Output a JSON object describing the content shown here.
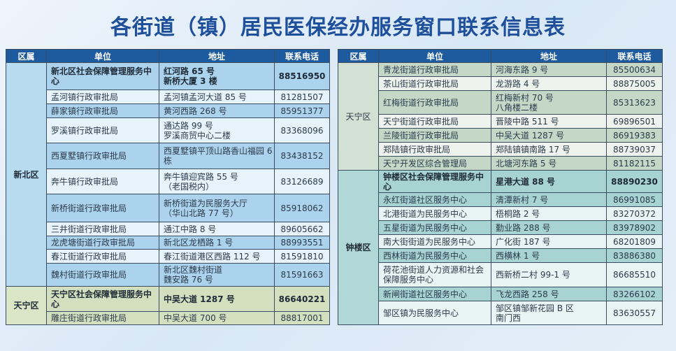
{
  "title": "各街道（镇）居民医保经办服务窗口联系信息表",
  "headers": [
    "区属",
    "单位",
    "地址",
    "联系电话"
  ],
  "left_table": {
    "groups": [
      {
        "region": "新北区",
        "color": "blue",
        "rows": [
          {
            "unit": "新北区社会保障管理服务中心",
            "address": "红河路 65 号\n新桥大厦 3 楼",
            "phone": "88516950",
            "bold": true
          },
          {
            "unit": "孟河镇行政审批局",
            "address": "孟河镇孟河大道 85 号",
            "phone": "81281507"
          },
          {
            "unit": "薛家镇行政审批局",
            "address": "黄河西路 268 号",
            "phone": "85951377"
          },
          {
            "unit": "罗溪镇行政审批局",
            "address": "通达路 99 号\n罗溪商贸中心二楼",
            "phone": "83368096"
          },
          {
            "unit": "西夏墅镇行政审批局",
            "address": "西夏墅镇平顶山路香山福园 6 栋",
            "phone": "83438152"
          },
          {
            "unit": "奔牛镇行政审批局",
            "address": "奔牛镇迎宾路 55 号\n（老国税内）",
            "phone": "83126689"
          },
          {
            "unit": "新桥街道行政审批局",
            "address": "新桥街道为民服务大厅\n（华山北路 77 号）",
            "phone": "85918062"
          },
          {
            "unit": "三井街道行政审批局",
            "address": "通江中路 8 号",
            "phone": "89605662"
          },
          {
            "unit": "龙虎塘街道行政审批局",
            "address": "新北区龙栖路 1 号",
            "phone": "88993551"
          },
          {
            "unit": "春江街道行政审批局",
            "address": "春江街道港区西路 112 号",
            "phone": "81591810"
          },
          {
            "unit": "魏村街道行政审批局",
            "address": "新北区魏村街道\n魏安路 76 号",
            "phone": "81591663"
          }
        ]
      },
      {
        "region": "天宁区",
        "color": "grn",
        "rows": [
          {
            "unit": "天宁区社会保障管理服务中心",
            "address": "中吴大道 1287 号",
            "phone": "86640221",
            "bold": true
          },
          {
            "unit": "雕庄街道行政审批局",
            "address": "中吴大道 700 号",
            "phone": "88817001"
          }
        ]
      }
    ]
  },
  "right_table": {
    "groups": [
      {
        "region": "天宁区",
        "color": "sg",
        "rows": [
          {
            "unit": "青龙街道行政审批局",
            "address": "河海东路 9 号",
            "phone": "85500634"
          },
          {
            "unit": "茶山街道行政审批局",
            "address": "龙游路 4 号",
            "phone": "88875005"
          },
          {
            "unit": "红梅街道行政审批局",
            "address": "红梅新村 70 号\n八角楼二楼",
            "phone": "85313623"
          },
          {
            "unit": "天宁街道行政审批局",
            "address": "晋陵中路 511 号",
            "phone": "69896501"
          },
          {
            "unit": "兰陵街道行政审批局",
            "address": "中吴大道 1287 号",
            "phone": "86919383"
          },
          {
            "unit": "郑陆镇行政审批局",
            "address": "郑陆镇镇南路 17 号",
            "phone": "88739037"
          },
          {
            "unit": "天宁开发区综合管理局",
            "address": "北塘河东路 5 号",
            "phone": "81182115"
          }
        ]
      },
      {
        "region": "钟楼区",
        "color": "tl",
        "rows": [
          {
            "unit": "钟楼区社会保障管理服务中心",
            "address": "星港大道 88 号",
            "phone": "88890230",
            "bold": true
          },
          {
            "unit": "永红街道社区服务中心",
            "address": "清潭新村 7 号",
            "phone": "86991085"
          },
          {
            "unit": "北港街道为民服务中心",
            "address": "梧桐路 2 号",
            "phone": "83270372"
          },
          {
            "unit": "五星街道为民服务中心",
            "address": "勤业路 288 号",
            "phone": "83978902"
          },
          {
            "unit": "南大街街道为民服务中心",
            "address": "广化街 187 号",
            "phone": "68201809"
          },
          {
            "unit": "西林街道为民服务中心",
            "address": "西横林 1 号",
            "phone": "83886380"
          },
          {
            "unit": "荷花池街道人力资源和社会保障服务中心",
            "address": "西新桥二村 99-1 号",
            "phone": "86685510"
          },
          {
            "unit": "新闸街道社区服务中心",
            "address": "飞龙西路 258 号",
            "phone": "83266102"
          },
          {
            "unit": "邹区镇为民服务中心",
            "address": "邹区镇邹新花园 B 区\n南门西",
            "phone": "83630557"
          }
        ]
      }
    ]
  },
  "colors": {
    "header": "#1d5a9e",
    "title": "#1d4f9a"
  }
}
